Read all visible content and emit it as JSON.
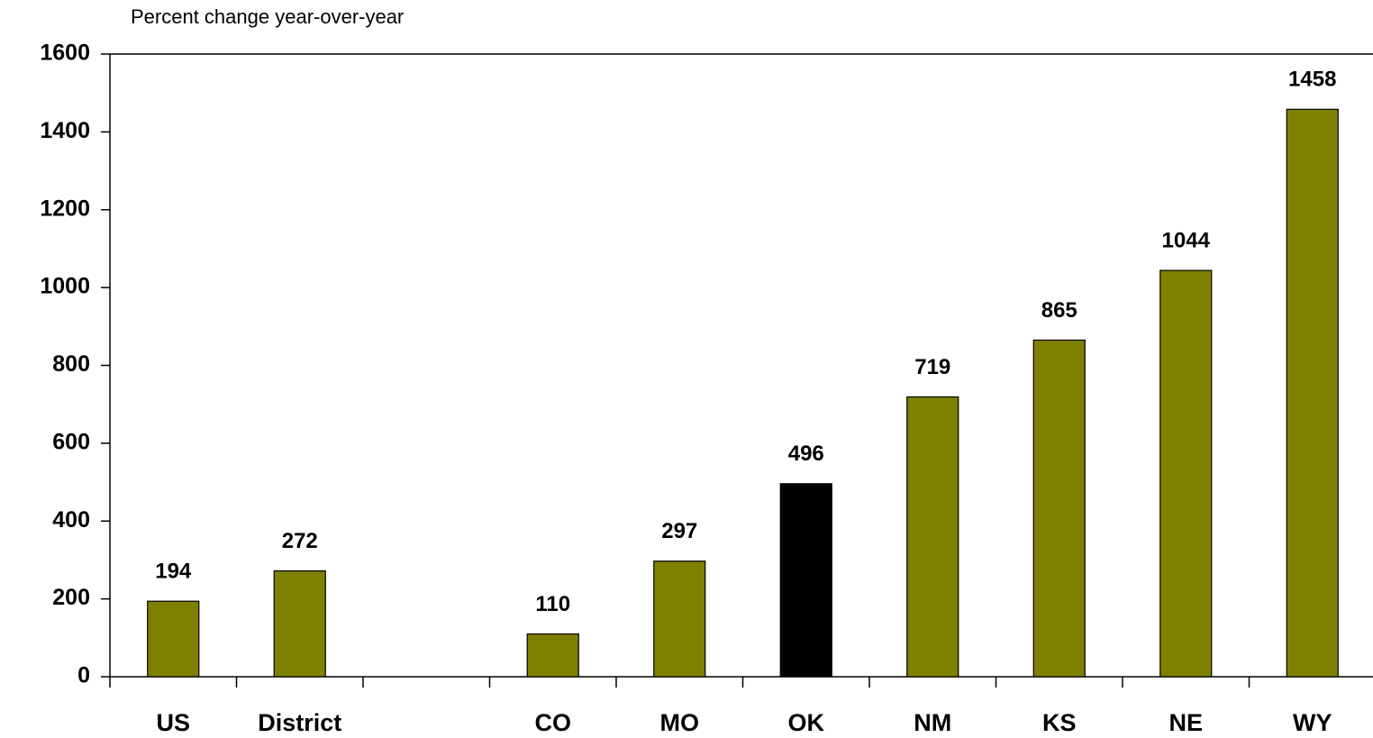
{
  "chart_data": {
    "type": "bar",
    "subtitle": "Percent change year-over-year",
    "categories": [
      "US",
      "District",
      null,
      "CO",
      "MO",
      "OK",
      "NM",
      "KS",
      "NE",
      "WY"
    ],
    "values": [
      194,
      272,
      null,
      110,
      297,
      496,
      719,
      865,
      1044,
      1458
    ],
    "colors": [
      "#808000",
      "#808000",
      null,
      "#808000",
      "#808000",
      "#000000",
      "#808000",
      "#808000",
      "#808000",
      "#808000"
    ],
    "ylim": [
      0,
      1600
    ],
    "yticks": [
      0,
      200,
      400,
      600,
      800,
      1000,
      1200,
      1400,
      1600
    ],
    "grid": false
  }
}
